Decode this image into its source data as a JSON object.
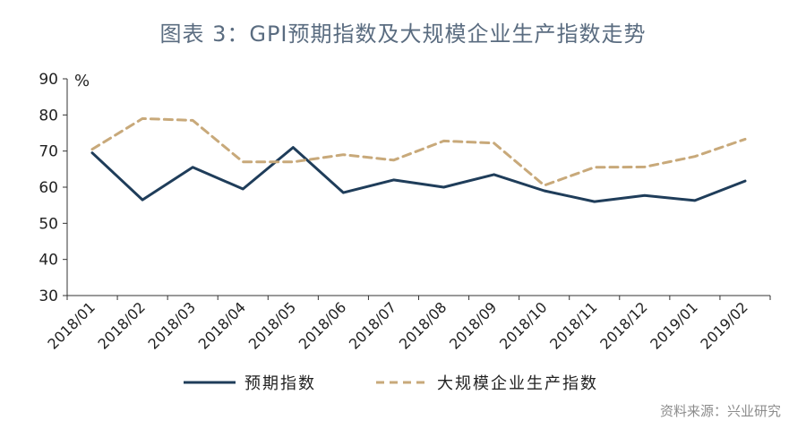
{
  "title": "图表 3：GPI预期指数及大规模企业生产指数走势",
  "source": "资料来源：兴业研究",
  "chart_data": {
    "type": "line",
    "unit_label": "%",
    "categories": [
      "2018/01",
      "2018/02",
      "2018/03",
      "2018/04",
      "2018/05",
      "2018/06",
      "2018/07",
      "2018/08",
      "2018/09",
      "2018/10",
      "2018/11",
      "2018/12",
      "2019/01",
      "2019/02"
    ],
    "series": [
      {
        "name": "预期指数",
        "values": [
          69.5,
          56.5,
          65.5,
          59.5,
          71,
          58.5,
          62,
          60,
          63.5,
          59,
          56,
          57.7,
          56.3,
          61.7
        ],
        "color": "#1f3d5a",
        "style": "solid"
      },
      {
        "name": "大规模企业生产指数",
        "values": [
          70.5,
          79,
          78.5,
          67,
          67,
          69,
          67.5,
          72.8,
          72.2,
          60.5,
          65.5,
          65.6,
          68.5,
          73.3
        ],
        "color": "#c8a97a",
        "style": "dashed"
      }
    ],
    "ylim": [
      30,
      90
    ],
    "yticks": [
      30,
      40,
      50,
      60,
      70,
      80,
      90
    ],
    "grid": false,
    "legend_position": "bottom"
  }
}
